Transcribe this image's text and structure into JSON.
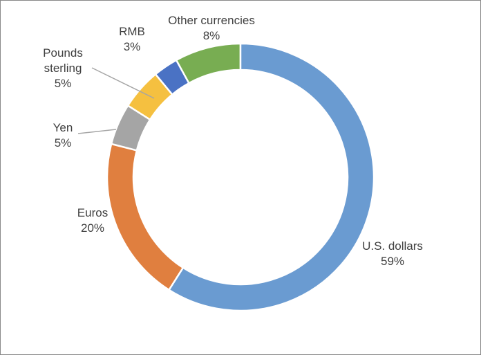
{
  "chart_data": {
    "type": "donut",
    "categories": [
      "U.S. dollars",
      "Euros",
      "Yen",
      "Pounds sterling",
      "RMB",
      "Other currencies"
    ],
    "values": [
      59,
      20,
      5,
      5,
      3,
      8
    ],
    "value_labels": [
      "59%",
      "20%",
      "5%",
      "5%",
      "3%",
      "8%"
    ],
    "colors": [
      "#6a9bd1",
      "#e07f3f",
      "#a5a5a5",
      "#f5c040",
      "#4a72c4",
      "#78ad52"
    ]
  }
}
